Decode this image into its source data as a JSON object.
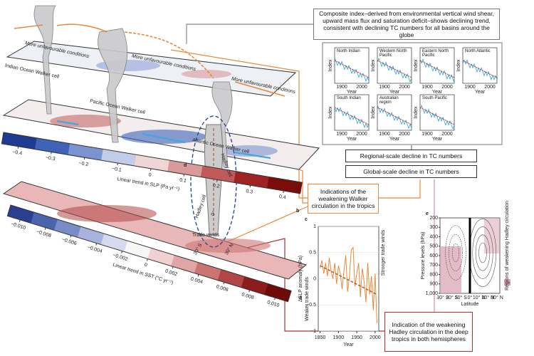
{
  "callouts": {
    "composite": "Composite index–derived from environmental vertical wind shear, upward mass flux and saturation deficit–shows declining trend, consistent with declining TC numbers for all basins around the globe",
    "regional": "Regional-scale decline in TC numbers",
    "global": "Global-scale decline in TC numbers",
    "walker": "Indications of the weakening Walker circulation in the tropics",
    "hadley": "Indication of the weakening Hadley circulation in the deep tropics in both hemispheres"
  },
  "basins": {
    "names": [
      "North Indian",
      "Western North Pacific",
      "Eastern North Pacific",
      "North Atlantic",
      "South Indian",
      "Australian region",
      "South Pacific"
    ],
    "ylabel": "Index",
    "xlabel": "Year",
    "xticks": [
      1900,
      2000
    ]
  },
  "walker": {
    "cells": [
      "Indian Ocean Walker cell",
      "Pacific Ocean Walker cell",
      "Atlantic Ocean Walker cell"
    ],
    "conditions": [
      "More unfavourable conditions",
      "More unfavourable conditions",
      "More unfavourable conditions"
    ]
  },
  "panel_b": {
    "label": "b",
    "axis_label": "Linear trend in SLP (Pa yr⁻¹)",
    "xlim": [
      -0.45,
      0.45
    ],
    "ticks": [
      {
        "value": -0.4,
        "label": "−0.4"
      },
      {
        "value": -0.3,
        "label": "−0.3"
      },
      {
        "value": -0.2,
        "label": "−0.2"
      },
      {
        "value": -0.1,
        "label": "−0.1"
      },
      0,
      0.1,
      0.2,
      0.3,
      0.4
    ],
    "colors": [
      "#1f3a93",
      "#3f63b8",
      "#7b93cf",
      "#c2cbe8",
      "#f0d5d5",
      "#d99a9a",
      "#c05a5a",
      "#9e2424",
      "#7a0c0c"
    ]
  },
  "panel_a": {
    "label": "a",
    "axis_label": "Linear trend in SST (°C yr⁻¹)",
    "annotation": "Trade winds",
    "xlim": [
      -0.011,
      0.011
    ],
    "ticks": [
      {
        "value": -0.01,
        "label": "−0.010"
      },
      {
        "value": -0.008,
        "label": "−0.008"
      },
      {
        "value": -0.006,
        "label": "−0.006"
      },
      {
        "value": -0.004,
        "label": "−0.004"
      },
      {
        "value": -0.002,
        "label": "−0.002"
      },
      0,
      {
        "value": 0.002,
        "label": "0.002"
      },
      {
        "value": 0.004,
        "label": "0.004"
      },
      {
        "value": 0.006,
        "label": "0.006"
      },
      {
        "value": 0.008,
        "label": "0.008"
      },
      {
        "value": 0.01,
        "label": "0.010"
      }
    ],
    "colors": [
      "#2a3f8f",
      "#4c63ad",
      "#7a8cc7",
      "#a7b3dc",
      "#d5daee",
      "#f6f6f6",
      "#f0d0d0",
      "#e0a5a5",
      "#cc7474",
      "#b04646",
      "#8e1c1c",
      "#6e0a0a"
    ]
  },
  "panel_d": {
    "label": "d",
    "cells": [
      "Hadley cell",
      "Hadley cell"
    ],
    "latitudes": [
      "30° S",
      "0°",
      "30° N"
    ]
  },
  "panel_c": {
    "label": "c",
    "type": "line",
    "ylabel": "ΔSLP anomaly (hPa)",
    "xlabel": "Year",
    "upper_note": "Stronger trade winds",
    "lower_note": "Weaker trade winds",
    "xlim": [
      1845,
      2010
    ],
    "ylim": [
      -1,
      1
    ],
    "xticks": [
      1850,
      1900,
      1950,
      2000
    ],
    "yticks": [
      {
        "value": -1,
        "label": "−1"
      },
      {
        "value": -0.5,
        "label": "−0.5"
      },
      0,
      0.5,
      1
    ],
    "x": [
      1850,
      1855,
      1860,
      1865,
      1870,
      1875,
      1880,
      1885,
      1890,
      1895,
      1900,
      1905,
      1910,
      1915,
      1920,
      1925,
      1930,
      1935,
      1940,
      1945,
      1950,
      1955,
      1960,
      1965,
      1970,
      1975,
      1980,
      1985,
      1990,
      1995,
      2000,
      2005
    ],
    "series": [
      {
        "color": "#e8893a",
        "values": [
          0.2,
          0.35,
          0.1,
          0.3,
          0.05,
          0.4,
          0.15,
          0.0,
          0.3,
          -0.1,
          0.25,
          0.1,
          -0.2,
          0.15,
          0.45,
          -0.25,
          0.05,
          0.55,
          0.6,
          -0.15,
          0.1,
          0.3,
          -0.35,
          0.2,
          -0.05,
          -0.45,
          0.3,
          -0.3,
          0.05,
          -0.6,
          0.1,
          -0.85
        ]
      }
    ],
    "trend": {
      "color": "#b8541a",
      "x": [
        1850,
        2005
      ],
      "values": [
        0.25,
        -0.3
      ]
    }
  },
  "panel_e": {
    "label": "e",
    "ylabel": "Pressure levels (hPa)",
    "xlabel": "Latitude",
    "legend": "Regions of weakening Hadley circulation",
    "ylim": [
      1000,
      200
    ],
    "yticks": [
      200,
      300,
      400,
      500,
      600,
      700,
      800,
      900,
      {
        "value": 1000,
        "label": "1,000"
      }
    ],
    "xtick_labels": [
      "30° S",
      "20° S",
      "10° S",
      "0°",
      "10° N",
      "20° N",
      "30° N"
    ]
  }
}
